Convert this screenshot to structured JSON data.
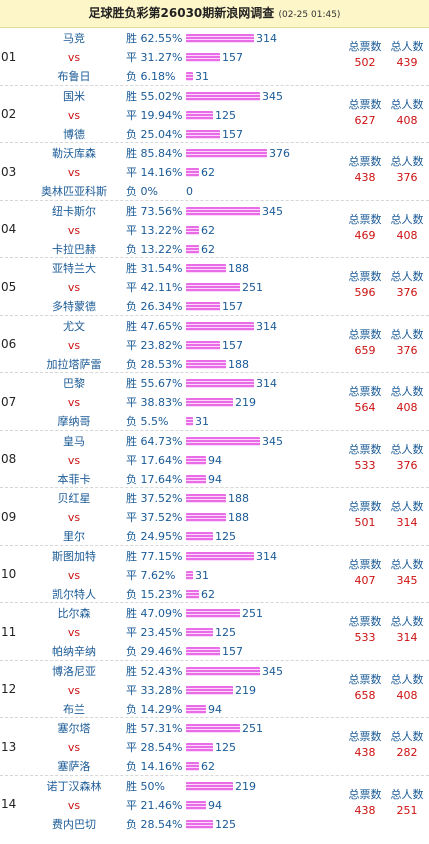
{
  "header": {
    "title": "足球胜负彩第26030期新浪网调查",
    "timestamp": "(02-25 01:45)"
  },
  "labels": {
    "win": "胜",
    "draw": "平",
    "lose": "负",
    "vs": "vs",
    "total_votes": "总票数",
    "total_people": "总人数"
  },
  "matches": [
    {
      "no": "01",
      "home": "马竞",
      "away": "布鲁日",
      "win": {
        "pct": "62.55%",
        "count": 314
      },
      "draw": {
        "pct": "31.27%",
        "count": 157
      },
      "lose": {
        "pct": "6.18%",
        "count": 31
      },
      "votes": "502",
      "people": "439"
    },
    {
      "no": "02",
      "home": "国米",
      "away": "博德",
      "win": {
        "pct": "55.02%",
        "count": 345
      },
      "draw": {
        "pct": "19.94%",
        "count": 125
      },
      "lose": {
        "pct": "25.04%",
        "count": 157
      },
      "votes": "627",
      "people": "408"
    },
    {
      "no": "03",
      "home": "勒沃库森",
      "away": "奥林匹亚科斯",
      "win": {
        "pct": "85.84%",
        "count": 376
      },
      "draw": {
        "pct": "14.16%",
        "count": 62
      },
      "lose": {
        "pct": "0%",
        "count": 0
      },
      "votes": "438",
      "people": "376"
    },
    {
      "no": "04",
      "home": "纽卡斯尔",
      "away": "卡拉巴赫",
      "win": {
        "pct": "73.56%",
        "count": 345
      },
      "draw": {
        "pct": "13.22%",
        "count": 62
      },
      "lose": {
        "pct": "13.22%",
        "count": 62
      },
      "votes": "469",
      "people": "408"
    },
    {
      "no": "05",
      "home": "亚特兰大",
      "away": "多特蒙德",
      "win": {
        "pct": "31.54%",
        "count": 188
      },
      "draw": {
        "pct": "42.11%",
        "count": 251
      },
      "lose": {
        "pct": "26.34%",
        "count": 157
      },
      "votes": "596",
      "people": "376"
    },
    {
      "no": "06",
      "home": "尤文",
      "away": "加拉塔萨雷",
      "win": {
        "pct": "47.65%",
        "count": 314
      },
      "draw": {
        "pct": "23.82%",
        "count": 157
      },
      "lose": {
        "pct": "28.53%",
        "count": 188
      },
      "votes": "659",
      "people": "376"
    },
    {
      "no": "07",
      "home": "巴黎",
      "away": "摩纳哥",
      "win": {
        "pct": "55.67%",
        "count": 314
      },
      "draw": {
        "pct": "38.83%",
        "count": 219
      },
      "lose": {
        "pct": "5.5%",
        "count": 31
      },
      "votes": "564",
      "people": "408"
    },
    {
      "no": "08",
      "home": "皇马",
      "away": "本菲卡",
      "win": {
        "pct": "64.73%",
        "count": 345
      },
      "draw": {
        "pct": "17.64%",
        "count": 94
      },
      "lose": {
        "pct": "17.64%",
        "count": 94
      },
      "votes": "533",
      "people": "376"
    },
    {
      "no": "09",
      "home": "贝红星",
      "away": "里尔",
      "win": {
        "pct": "37.52%",
        "count": 188
      },
      "draw": {
        "pct": "37.52%",
        "count": 188
      },
      "lose": {
        "pct": "24.95%",
        "count": 125
      },
      "votes": "501",
      "people": "314"
    },
    {
      "no": "10",
      "home": "斯图加特",
      "away": "凯尔特人",
      "win": {
        "pct": "77.15%",
        "count": 314
      },
      "draw": {
        "pct": "7.62%",
        "count": 31
      },
      "lose": {
        "pct": "15.23%",
        "count": 62
      },
      "votes": "407",
      "people": "345"
    },
    {
      "no": "11",
      "home": "比尔森",
      "away": "帕纳辛纳",
      "win": {
        "pct": "47.09%",
        "count": 251
      },
      "draw": {
        "pct": "23.45%",
        "count": 125
      },
      "lose": {
        "pct": "29.46%",
        "count": 157
      },
      "votes": "533",
      "people": "314"
    },
    {
      "no": "12",
      "home": "博洛尼亚",
      "away": "布兰",
      "win": {
        "pct": "52.43%",
        "count": 345
      },
      "draw": {
        "pct": "33.28%",
        "count": 219
      },
      "lose": {
        "pct": "14.29%",
        "count": 94
      },
      "votes": "658",
      "people": "408"
    },
    {
      "no": "13",
      "home": "塞尔塔",
      "away": "塞萨洛",
      "win": {
        "pct": "57.31%",
        "count": 251
      },
      "draw": {
        "pct": "28.54%",
        "count": 125
      },
      "lose": {
        "pct": "14.16%",
        "count": 62
      },
      "votes": "438",
      "people": "282"
    },
    {
      "no": "14",
      "home": "诺丁汉森林",
      "away": "费内巴切",
      "win": {
        "pct": "50%",
        "count": 219
      },
      "draw": {
        "pct": "21.46%",
        "count": 94
      },
      "lose": {
        "pct": "28.54%",
        "count": 125
      },
      "votes": "438",
      "people": "251"
    }
  ]
}
